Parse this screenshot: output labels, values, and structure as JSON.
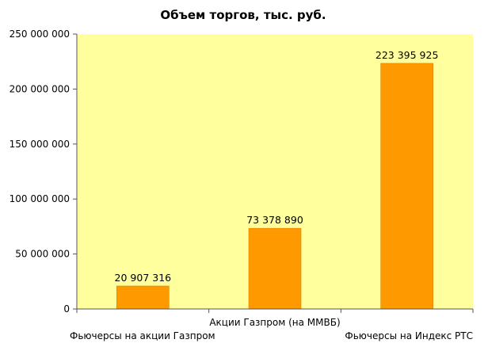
{
  "chart_data": {
    "type": "bar",
    "title": "Объем торгов, тыс. руб.",
    "categories": [
      "Фьючерсы на акции Газпром",
      "Акции Газпром (на ММВБ)",
      "Фьючерсы на Индекс РТС"
    ],
    "values": [
      20907316,
      73378890,
      223395925
    ],
    "value_labels": [
      "20 907 316",
      "73 378 890",
      "223 395 925"
    ],
    "yticks": [
      0,
      50000000,
      100000000,
      150000000,
      200000000,
      250000000
    ],
    "ytick_labels": [
      "0",
      "50 000 000",
      "100 000 000",
      "150 000 000",
      "200 000 000",
      "250 000 000"
    ],
    "ylim": [
      0,
      250000000
    ],
    "xlabel": "",
    "ylabel": "",
    "grid": false,
    "legend": "none",
    "colors": {
      "plot_background": "#ffff9e",
      "bar": "#ff9900",
      "bar_edge": "#d98200",
      "axis": "#555555"
    }
  }
}
